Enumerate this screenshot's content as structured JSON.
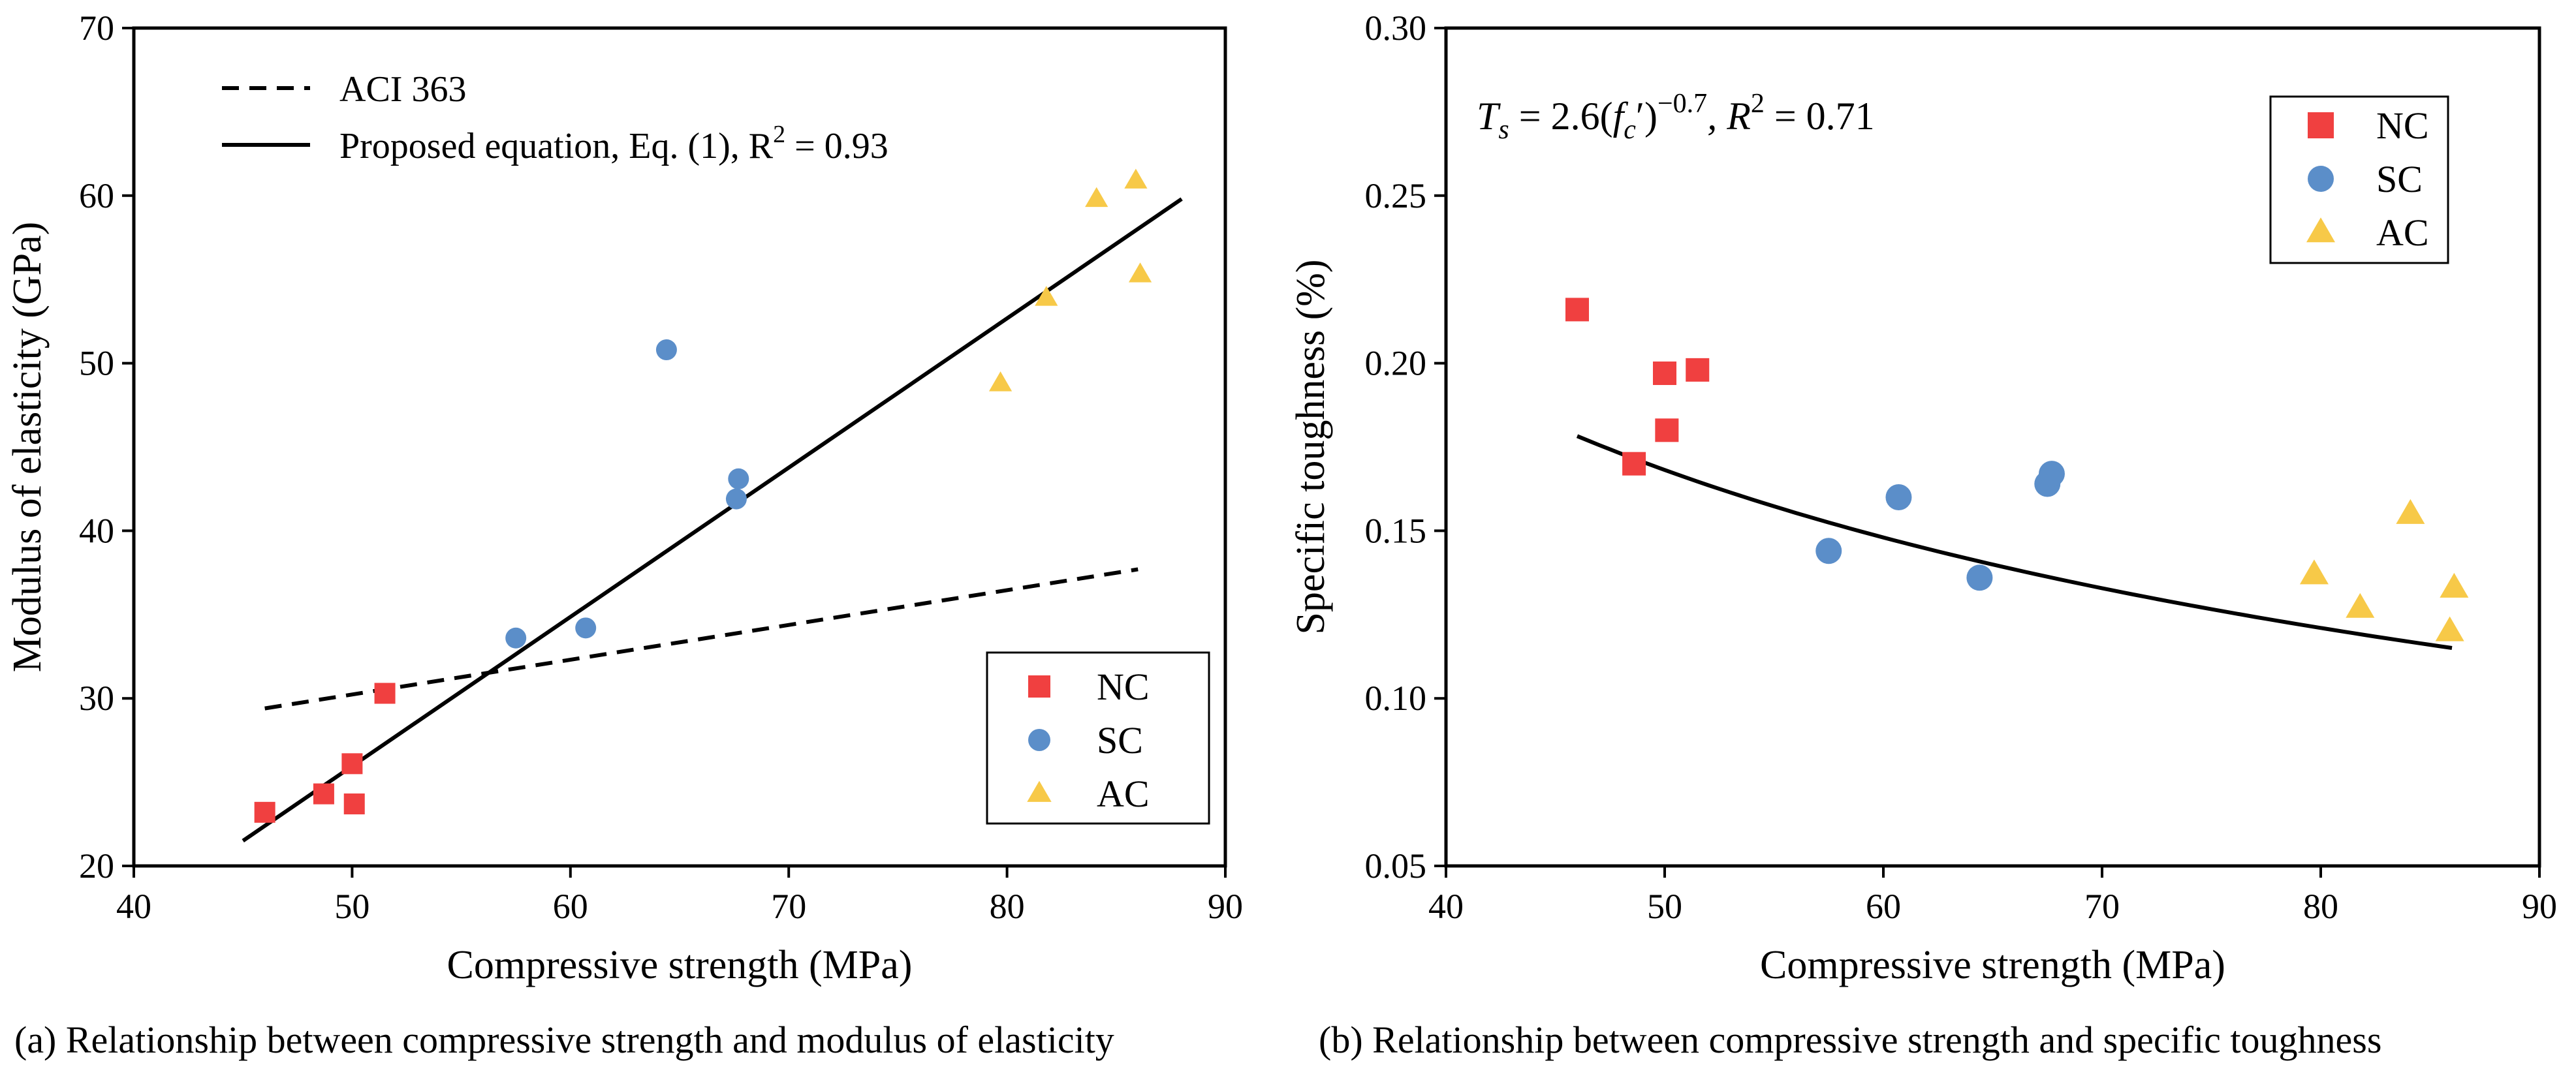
{
  "chart_data": [
    {
      "type": "scatter",
      "panel": "a",
      "caption": "(a) Relationship between compressive strength and modulus of elasticity",
      "xlabel": "Compressive strength (MPa)",
      "ylabel": "Modulus of elasticity (GPa)",
      "xlim": [
        40,
        90
      ],
      "ylim": [
        20,
        70
      ],
      "xticks": [
        40,
        50,
        60,
        70,
        80,
        90
      ],
      "yticks": [
        20,
        30,
        40,
        50,
        60,
        70
      ],
      "legend_position": "bottom-right",
      "lines": [
        {
          "name": "ACI 363",
          "style": "dashed",
          "x": [
            46,
            86
          ],
          "y": [
            29.4,
            37.7
          ]
        },
        {
          "name": "Proposed equation, Eq. (1), R² = 0.93",
          "label_main": "Proposed equation, Eq. (1), R",
          "label_sup": "2",
          "label_tail": " = 0.93",
          "style": "solid",
          "x": [
            45,
            88
          ],
          "y": [
            21.5,
            59.8
          ]
        }
      ],
      "series": [
        {
          "name": "NC",
          "color": "#f04040",
          "marker": "square",
          "x": [
            46.0,
            48.7,
            50.0,
            50.1,
            51.5
          ],
          "y": [
            23.2,
            24.3,
            26.1,
            23.7,
            30.3
          ]
        },
        {
          "name": "SC",
          "color": "#5b8ec9",
          "marker": "circle",
          "x": [
            57.5,
            60.7,
            64.4,
            67.6,
            67.7
          ],
          "y": [
            33.6,
            34.2,
            50.8,
            41.9,
            43.1
          ]
        },
        {
          "name": "AC",
          "color": "#f7c948",
          "marker": "triangle",
          "x": [
            79.7,
            81.8,
            84.1,
            85.9,
            86.1
          ],
          "y": [
            48.8,
            53.9,
            59.8,
            60.9,
            55.3
          ]
        }
      ]
    },
    {
      "type": "scatter",
      "panel": "b",
      "caption": "(b) Relationship between compressive strength and specific toughness",
      "xlabel": "Compressive strength (MPa)",
      "ylabel": "Specific toughness (%)",
      "xlim": [
        40,
        90
      ],
      "ylim": [
        0.05,
        0.3
      ],
      "xticks": [
        40,
        50,
        60,
        70,
        80,
        90
      ],
      "yticks": [
        0.05,
        0.1,
        0.15,
        0.2,
        0.25,
        0.3
      ],
      "ytick_labels": [
        "0.05",
        "0.10",
        "0.15",
        "0.20",
        "0.25",
        "0.30"
      ],
      "legend_position": "top-right",
      "equation": {
        "lhs": "T",
        "lhs_sub": "s",
        "mid": " = 2.6(",
        "f": "f",
        "f_sub": "c",
        "prime_close": "′)",
        "exp": "−0.7",
        "r": ", R",
        "r_sup": "2",
        "r_val": " = 0.71"
      },
      "curve": {
        "name": "Ts = 2.6(fc′)^-0.7",
        "coef": 2.6,
        "power": -0.7,
        "x_range": [
          46,
          86
        ]
      },
      "series": [
        {
          "name": "NC",
          "color": "#f04040",
          "marker": "square",
          "x": [
            46.0,
            48.6,
            50.0,
            50.1,
            51.5
          ],
          "y": [
            0.216,
            0.17,
            0.197,
            0.18,
            0.198
          ]
        },
        {
          "name": "SC",
          "color": "#5b8ec9",
          "marker": "circle",
          "x": [
            57.5,
            60.7,
            64.4,
            67.5,
            67.7
          ],
          "y": [
            0.144,
            0.16,
            0.136,
            0.164,
            0.167
          ]
        },
        {
          "name": "AC",
          "color": "#f7c948",
          "marker": "triangle",
          "x": [
            79.7,
            81.8,
            84.1,
            85.9,
            86.1
          ],
          "y": [
            0.137,
            0.127,
            0.155,
            0.12,
            0.133
          ]
        }
      ]
    }
  ]
}
